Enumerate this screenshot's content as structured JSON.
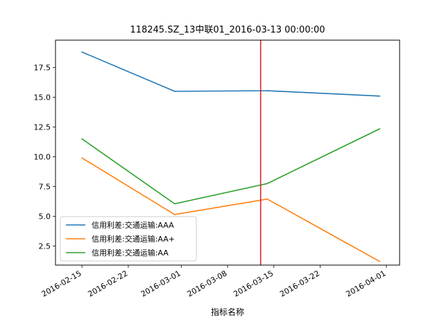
{
  "chart_data": {
    "type": "line",
    "title": "118245.SZ_13中联01_2016-03-13 00:00:00",
    "xlabel": "指标名称",
    "ylabel": "",
    "x": [
      "2016-02-15",
      "2016-02-29",
      "2016-03-14",
      "2016-03-31"
    ],
    "xlim": [
      "2016-02-11",
      "2016-04-03"
    ],
    "ylim": [
      0.9,
      19.8
    ],
    "x_ticks": [
      "2016-02-15",
      "2016-02-22",
      "2016-03-01",
      "2016-03-08",
      "2016-03-15",
      "2016-03-22",
      "2016-04-01"
    ],
    "y_ticks": [
      2.5,
      5.0,
      7.5,
      10.0,
      12.5,
      15.0,
      17.5
    ],
    "y_tick_labels": [
      "2.5",
      "5.0",
      "7.5",
      "10.0",
      "12.5",
      "15.0",
      "17.5"
    ],
    "series": [
      {
        "name": "信用利差:交通运输:AAA",
        "color": "#1f77b4",
        "values": [
          18.8,
          15.5,
          15.55,
          15.1
        ]
      },
      {
        "name": "信用利差:交通运输:AA+",
        "color": "#ff7f0e",
        "values": [
          9.9,
          5.15,
          6.45,
          1.2
        ]
      },
      {
        "name": "信用利差:交通运输:AA",
        "color": "#2ca02c",
        "values": [
          11.5,
          6.05,
          7.75,
          12.35
        ]
      }
    ],
    "reference_line": {
      "x": "2016-03-13",
      "color": "#d62728"
    },
    "grid": false,
    "legend_position": "lower-left"
  }
}
